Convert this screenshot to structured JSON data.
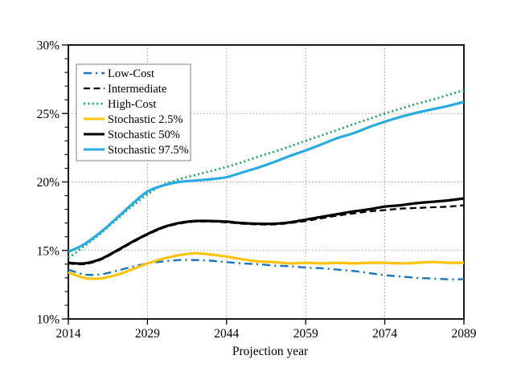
{
  "figure": {
    "background": "#ffffff",
    "frame_color": "#000000",
    "grid_color": "#9a9a9a",
    "legend_border_color": "#7f7f7f"
  },
  "chart_data": {
    "type": "line",
    "title": "",
    "xlabel": "Projection year",
    "ylabel": "",
    "xlim": [
      2014,
      2089
    ],
    "ylim": [
      10,
      30
    ],
    "xticks": [
      2014,
      2029,
      2044,
      2059,
      2074,
      2089
    ],
    "xtick_labels": [
      "2014",
      "2029",
      "2044",
      "2059",
      "2074",
      "2089"
    ],
    "yticks": [
      10,
      15,
      20,
      25,
      30
    ],
    "ytick_labels": [
      "10%",
      "15%",
      "20%",
      "25%",
      "30%"
    ],
    "y_minor_tick_interval": 1,
    "grid": true,
    "legend_position": "upper-left",
    "x": [
      2014,
      2017,
      2020,
      2023,
      2026,
      2029,
      2032,
      2035,
      2038,
      2041,
      2044,
      2047,
      2050,
      2053,
      2056,
      2059,
      2062,
      2065,
      2068,
      2071,
      2074,
      2077,
      2080,
      2083,
      2086,
      2089
    ],
    "series": [
      {
        "name": "Low-Cost",
        "style": "dashdot",
        "color": "#1B75BC",
        "width": 2.4,
        "values": [
          13.6,
          13.25,
          13.25,
          13.5,
          13.8,
          14.05,
          14.2,
          14.3,
          14.3,
          14.25,
          14.15,
          14.05,
          14.0,
          13.9,
          13.85,
          13.75,
          13.7,
          13.6,
          13.5,
          13.35,
          13.2,
          13.1,
          13.0,
          12.95,
          12.9,
          12.9
        ]
      },
      {
        "name": "Intermediate",
        "style": "dashed",
        "color": "#000000",
        "width": 2.3,
        "values": [
          14.05,
          14.0,
          14.3,
          14.9,
          15.55,
          16.15,
          16.65,
          16.95,
          17.1,
          17.1,
          17.05,
          16.95,
          16.9,
          16.9,
          17.0,
          17.15,
          17.35,
          17.55,
          17.7,
          17.85,
          17.95,
          18.05,
          18.1,
          18.15,
          18.2,
          18.3
        ]
      },
      {
        "name": "High-Cost",
        "style": "dotted",
        "color": "#1FA15C",
        "width": 2.7,
        "values": [
          14.45,
          15.3,
          16.2,
          17.2,
          18.2,
          19.1,
          19.8,
          20.2,
          20.5,
          20.8,
          21.1,
          21.45,
          21.85,
          22.2,
          22.6,
          23.0,
          23.4,
          23.8,
          24.2,
          24.6,
          25.0,
          25.35,
          25.7,
          26.0,
          26.35,
          26.7
        ]
      },
      {
        "name": "Stochastic 2.5%",
        "style": "solid",
        "color": "#FFC20E",
        "width": 3.2,
        "values": [
          13.4,
          13.0,
          12.95,
          13.2,
          13.6,
          14.05,
          14.4,
          14.65,
          14.8,
          14.7,
          14.55,
          14.35,
          14.2,
          14.15,
          14.05,
          14.1,
          14.05,
          14.1,
          14.05,
          14.1,
          14.1,
          14.05,
          14.1,
          14.15,
          14.1,
          14.1
        ]
      },
      {
        "name": "Stochastic 50%",
        "style": "solid",
        "color": "#000000",
        "width": 3.2,
        "values": [
          14.1,
          14.05,
          14.35,
          14.95,
          15.6,
          16.2,
          16.7,
          17.0,
          17.15,
          17.15,
          17.1,
          17.0,
          16.95,
          16.95,
          17.05,
          17.25,
          17.45,
          17.65,
          17.85,
          18.0,
          18.2,
          18.3,
          18.45,
          18.55,
          18.65,
          18.8
        ]
      },
      {
        "name": "Stochastic 97.5%",
        "style": "solid",
        "color": "#29ABE2",
        "width": 3.2,
        "values": [
          14.9,
          15.45,
          16.3,
          17.3,
          18.35,
          19.3,
          19.75,
          20.0,
          20.1,
          20.2,
          20.35,
          20.7,
          21.05,
          21.45,
          21.9,
          22.3,
          22.75,
          23.2,
          23.55,
          24.0,
          24.4,
          24.75,
          25.05,
          25.3,
          25.55,
          25.85
        ]
      }
    ]
  }
}
